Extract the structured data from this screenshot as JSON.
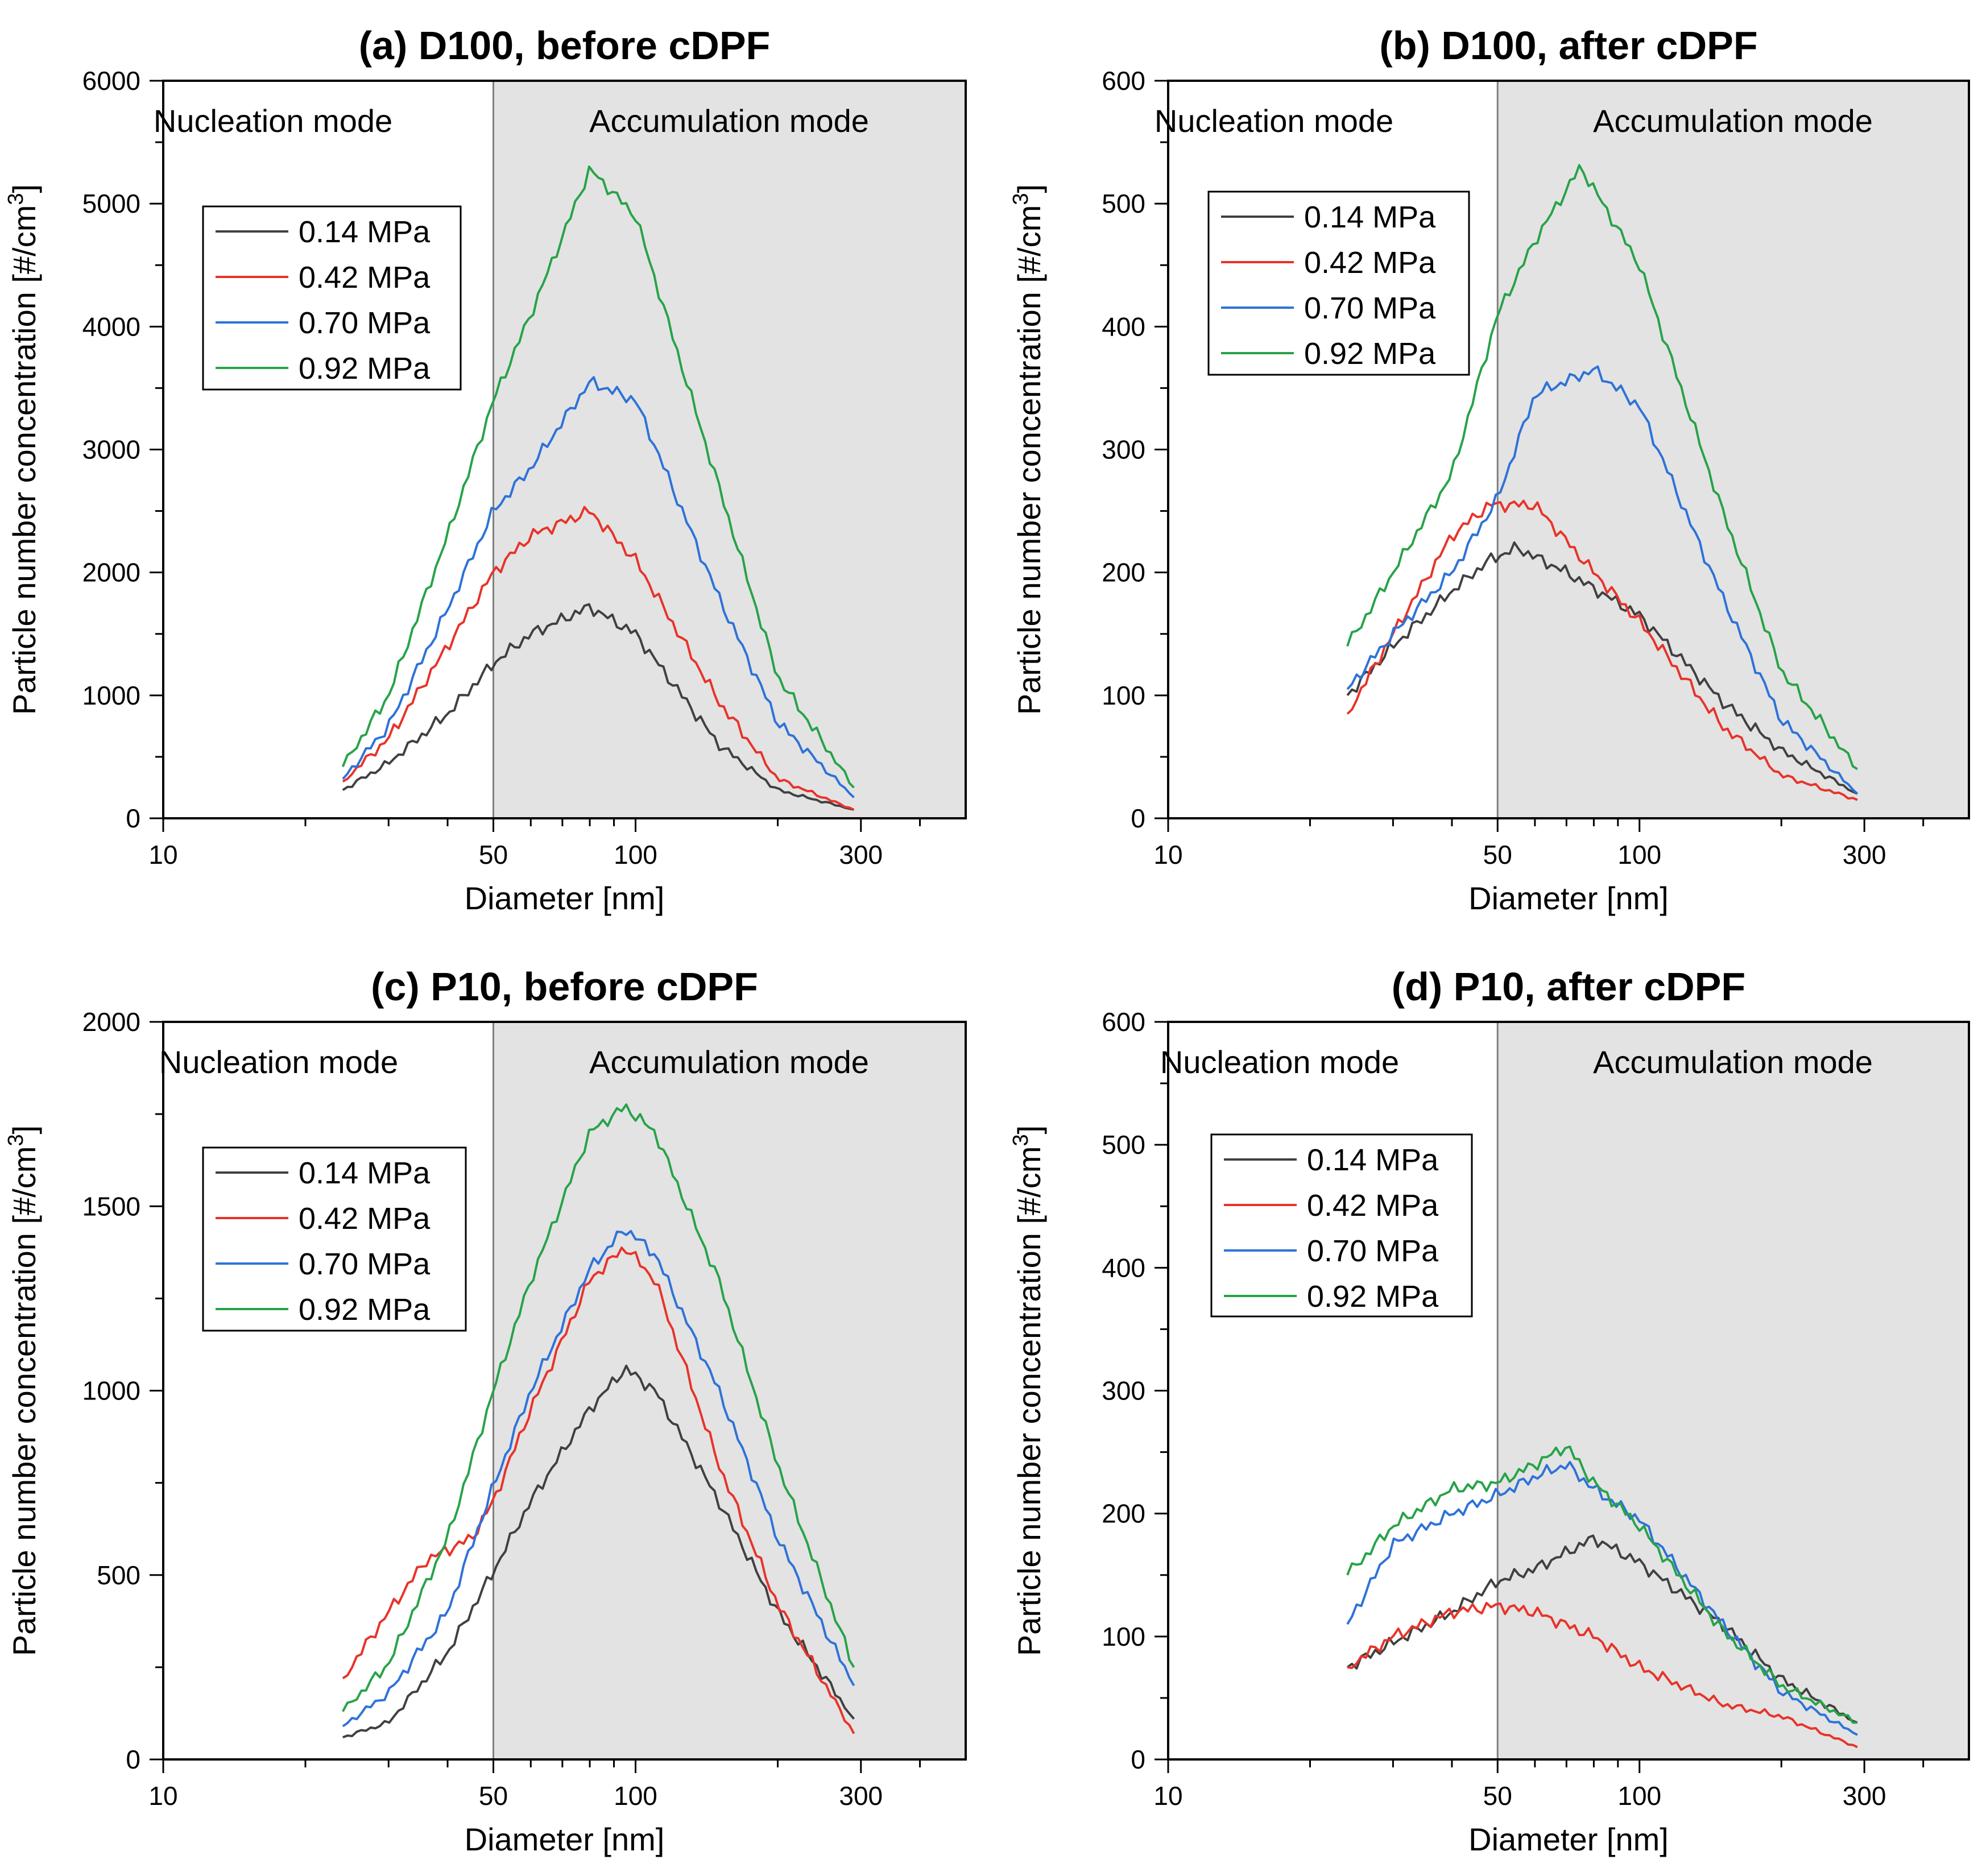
{
  "chart_data": [
    {
      "type": "line",
      "title": "(a) D100, before cDPF",
      "xlabel": "Diameter [nm]",
      "ylabel_main": "Particle number concentration [#/cm",
      "ylabel_sup": "3",
      "ylabel_close": "]",
      "xscale": "log",
      "xlim": [
        10,
        500
      ],
      "xticks": [
        10,
        50,
        100,
        300
      ],
      "xtick_labels": [
        "10",
        "50",
        "100",
        "300"
      ],
      "ylim": [
        0,
        6000
      ],
      "yticks": [
        0,
        1000,
        2000,
        3000,
        4000,
        5000,
        6000
      ],
      "ytick_labels": [
        "0",
        "1000",
        "2000",
        "3000",
        "4000",
        "5000",
        "6000"
      ],
      "shaded_region": [
        50,
        500
      ],
      "divider_x": 50,
      "regions": {
        "left": "Nucleation mode",
        "right": "Accumulation mode"
      },
      "legend_position": "upper-left",
      "series": [
        {
          "name": "0.14 MPa",
          "color": "#404040",
          "keypoints": [
            [
              24,
              230
            ],
            [
              30,
              450
            ],
            [
              40,
              850
            ],
            [
              50,
              1260
            ],
            [
              60,
              1500
            ],
            [
              80,
              1720
            ],
            [
              100,
              1500
            ],
            [
              150,
              600
            ],
            [
              200,
              230
            ],
            [
              290,
              70
            ]
          ]
        },
        {
          "name": "0.42 MPa",
          "color": "#e8332a",
          "keypoints": [
            [
              24,
              300
            ],
            [
              30,
              650
            ],
            [
              40,
              1400
            ],
            [
              50,
              2000
            ],
            [
              60,
              2300
            ],
            [
              80,
              2500
            ],
            [
              100,
              2100
            ],
            [
              150,
              950
            ],
            [
              200,
              320
            ],
            [
              290,
              70
            ]
          ]
        },
        {
          "name": "0.70 MPa",
          "color": "#2e72d9",
          "keypoints": [
            [
              24,
              320
            ],
            [
              30,
              750
            ],
            [
              40,
              1700
            ],
            [
              50,
              2500
            ],
            [
              60,
              2850
            ],
            [
              80,
              3550
            ],
            [
              100,
              3400
            ],
            [
              150,
              1800
            ],
            [
              200,
              780
            ],
            [
              290,
              170
            ]
          ]
        },
        {
          "name": "0.92 MPa",
          "color": "#27a348",
          "keypoints": [
            [
              24,
              420
            ],
            [
              30,
              1000
            ],
            [
              40,
              2300
            ],
            [
              50,
              3400
            ],
            [
              60,
              4100
            ],
            [
              80,
              5280
            ],
            [
              100,
              4900
            ],
            [
              150,
              2700
            ],
            [
              200,
              1150
            ],
            [
              290,
              250
            ]
          ]
        }
      ]
    },
    {
      "type": "line",
      "title": "(b) D100, after cDPF",
      "xlabel": "Diameter [nm]",
      "ylabel_main": "Particle number concentration [#/cm",
      "ylabel_sup": "3",
      "ylabel_close": "]",
      "xscale": "log",
      "xlim": [
        10,
        500
      ],
      "xticks": [
        10,
        50,
        100,
        300
      ],
      "xtick_labels": [
        "10",
        "50",
        "100",
        "300"
      ],
      "ylim": [
        0,
        600
      ],
      "yticks": [
        0,
        100,
        200,
        300,
        400,
        500,
        600
      ],
      "ytick_labels": [
        "0",
        "100",
        "200",
        "300",
        "400",
        "500",
        "600"
      ],
      "shaded_region": [
        50,
        500
      ],
      "divider_x": 50,
      "regions": {
        "left": "Nucleation mode",
        "right": "Accumulation mode"
      },
      "legend_position": "upper-left",
      "series": [
        {
          "name": "0.14 MPa",
          "color": "#404040",
          "keypoints": [
            [
              24,
              100
            ],
            [
              30,
              140
            ],
            [
              40,
              185
            ],
            [
              48,
              210
            ],
            [
              55,
              220
            ],
            [
              70,
              200
            ],
            [
              100,
              165
            ],
            [
              150,
              95
            ],
            [
              200,
              55
            ],
            [
              290,
              20
            ]
          ]
        },
        {
          "name": "0.42 MPa",
          "color": "#e8332a",
          "keypoints": [
            [
              24,
              85
            ],
            [
              30,
              150
            ],
            [
              40,
              230
            ],
            [
              48,
              255
            ],
            [
              60,
              255
            ],
            [
              80,
              200
            ],
            [
              100,
              160
            ],
            [
              150,
              75
            ],
            [
              200,
              35
            ],
            [
              290,
              15
            ]
          ]
        },
        {
          "name": "0.70 MPa",
          "color": "#2e72d9",
          "keypoints": [
            [
              24,
              105
            ],
            [
              30,
              150
            ],
            [
              40,
              200
            ],
            [
              50,
              260
            ],
            [
              60,
              345
            ],
            [
              80,
              365
            ],
            [
              100,
              335
            ],
            [
              150,
              180
            ],
            [
              200,
              80
            ],
            [
              290,
              20
            ]
          ]
        },
        {
          "name": "0.92 MPa",
          "color": "#27a348",
          "keypoints": [
            [
              24,
              140
            ],
            [
              30,
              200
            ],
            [
              40,
              280
            ],
            [
              50,
              410
            ],
            [
              60,
              470
            ],
            [
              75,
              530
            ],
            [
              100,
              450
            ],
            [
              150,
              250
            ],
            [
              200,
              120
            ],
            [
              290,
              40
            ]
          ]
        }
      ]
    },
    {
      "type": "line",
      "title": "(c) P10, before cDPF",
      "xlabel": "Diameter [nm]",
      "ylabel_main": "Particle number concentration [#/cm",
      "ylabel_sup": "3",
      "ylabel_close": "]",
      "xscale": "log",
      "xlim": [
        10,
        500
      ],
      "xticks": [
        10,
        50,
        100,
        300
      ],
      "xtick_labels": [
        "10",
        "50",
        "100",
        "300"
      ],
      "ylim": [
        0,
        2000
      ],
      "yticks": [
        0,
        500,
        1000,
        1500,
        2000
      ],
      "ytick_labels": [
        "0",
        "500",
        "1000",
        "1500",
        "2000"
      ],
      "shaded_region": [
        50,
        500
      ],
      "divider_x": 50,
      "regions": {
        "left": "Nucleation mode",
        "right": "Accumulation mode"
      },
      "legend_position": "upper-left",
      "series": [
        {
          "name": "0.14 MPa",
          "color": "#404040",
          "keypoints": [
            [
              24,
              60
            ],
            [
              30,
              100
            ],
            [
              40,
              290
            ],
            [
              50,
              510
            ],
            [
              60,
              700
            ],
            [
              80,
              950
            ],
            [
              95,
              1060
            ],
            [
              110,
              1000
            ],
            [
              150,
              700
            ],
            [
              200,
              400
            ],
            [
              290,
              110
            ]
          ]
        },
        {
          "name": "0.42 MPa",
          "color": "#e8332a",
          "keypoints": [
            [
              24,
              220
            ],
            [
              30,
              400
            ],
            [
              36,
              540
            ],
            [
              45,
              600
            ],
            [
              50,
              700
            ],
            [
              60,
              950
            ],
            [
              80,
              1300
            ],
            [
              95,
              1390
            ],
            [
              110,
              1300
            ],
            [
              150,
              800
            ],
            [
              200,
              420
            ],
            [
              290,
              70
            ]
          ]
        },
        {
          "name": "0.70 MPa",
          "color": "#2e72d9",
          "keypoints": [
            [
              24,
              90
            ],
            [
              30,
              180
            ],
            [
              40,
              400
            ],
            [
              50,
              740
            ],
            [
              60,
              1000
            ],
            [
              80,
              1330
            ],
            [
              95,
              1440
            ],
            [
              110,
              1370
            ],
            [
              150,
              1000
            ],
            [
              200,
              600
            ],
            [
              290,
              200
            ]
          ]
        },
        {
          "name": "0.92 MPa",
          "color": "#27a348",
          "keypoints": [
            [
              24,
              130
            ],
            [
              30,
              260
            ],
            [
              40,
              600
            ],
            [
              50,
              1000
            ],
            [
              60,
              1300
            ],
            [
              80,
              1700
            ],
            [
              95,
              1770
            ],
            [
              110,
              1700
            ],
            [
              150,
              1300
            ],
            [
              200,
              800
            ],
            [
              290,
              250
            ]
          ]
        }
      ]
    },
    {
      "type": "line",
      "title": "(d) P10, after cDPF",
      "xlabel": "Diameter [nm]",
      "ylabel_main": "Particle number concentration [#/cm",
      "ylabel_sup": "3",
      "ylabel_close": "]",
      "xscale": "log",
      "xlim": [
        10,
        500
      ],
      "xticks": [
        10,
        50,
        100,
        300
      ],
      "xtick_labels": [
        "10",
        "50",
        "100",
        "300"
      ],
      "ylim": [
        0,
        600
      ],
      "yticks": [
        0,
        100,
        200,
        300,
        400,
        500,
        600
      ],
      "ytick_labels": [
        "0",
        "100",
        "200",
        "300",
        "400",
        "500",
        "600"
      ],
      "shaded_region": [
        50,
        500
      ],
      "divider_x": 50,
      "regions": {
        "left": "Nucleation mode",
        "right": "Accumulation mode"
      },
      "legend_position": "upper-left",
      "series": [
        {
          "name": "0.14 MPa",
          "color": "#404040",
          "keypoints": [
            [
              24,
              75
            ],
            [
              30,
              95
            ],
            [
              40,
              120
            ],
            [
              50,
              145
            ],
            [
              60,
              155
            ],
            [
              80,
              180
            ],
            [
              100,
              160
            ],
            [
              150,
              110
            ],
            [
              200,
              65
            ],
            [
              290,
              30
            ]
          ]
        },
        {
          "name": "0.42 MPa",
          "color": "#e8332a",
          "keypoints": [
            [
              24,
              75
            ],
            [
              30,
              100
            ],
            [
              40,
              120
            ],
            [
              50,
              125
            ],
            [
              60,
              120
            ],
            [
              80,
              100
            ],
            [
              100,
              75
            ],
            [
              150,
              45
            ],
            [
              200,
              35
            ],
            [
              290,
              10
            ]
          ]
        },
        {
          "name": "0.70 MPa",
          "color": "#2e72d9",
          "keypoints": [
            [
              24,
              110
            ],
            [
              30,
              175
            ],
            [
              40,
              200
            ],
            [
              50,
              215
            ],
            [
              60,
              230
            ],
            [
              70,
              240
            ],
            [
              80,
              220
            ],
            [
              100,
              195
            ],
            [
              150,
              110
            ],
            [
              200,
              55
            ],
            [
              290,
              20
            ]
          ]
        },
        {
          "name": "0.92 MPa",
          "color": "#27a348",
          "keypoints": [
            [
              24,
              150
            ],
            [
              30,
              190
            ],
            [
              40,
              220
            ],
            [
              50,
              225
            ],
            [
              60,
              240
            ],
            [
              70,
              255
            ],
            [
              80,
              225
            ],
            [
              100,
              190
            ],
            [
              150,
              105
            ],
            [
              200,
              60
            ],
            [
              290,
              30
            ]
          ]
        }
      ]
    }
  ]
}
